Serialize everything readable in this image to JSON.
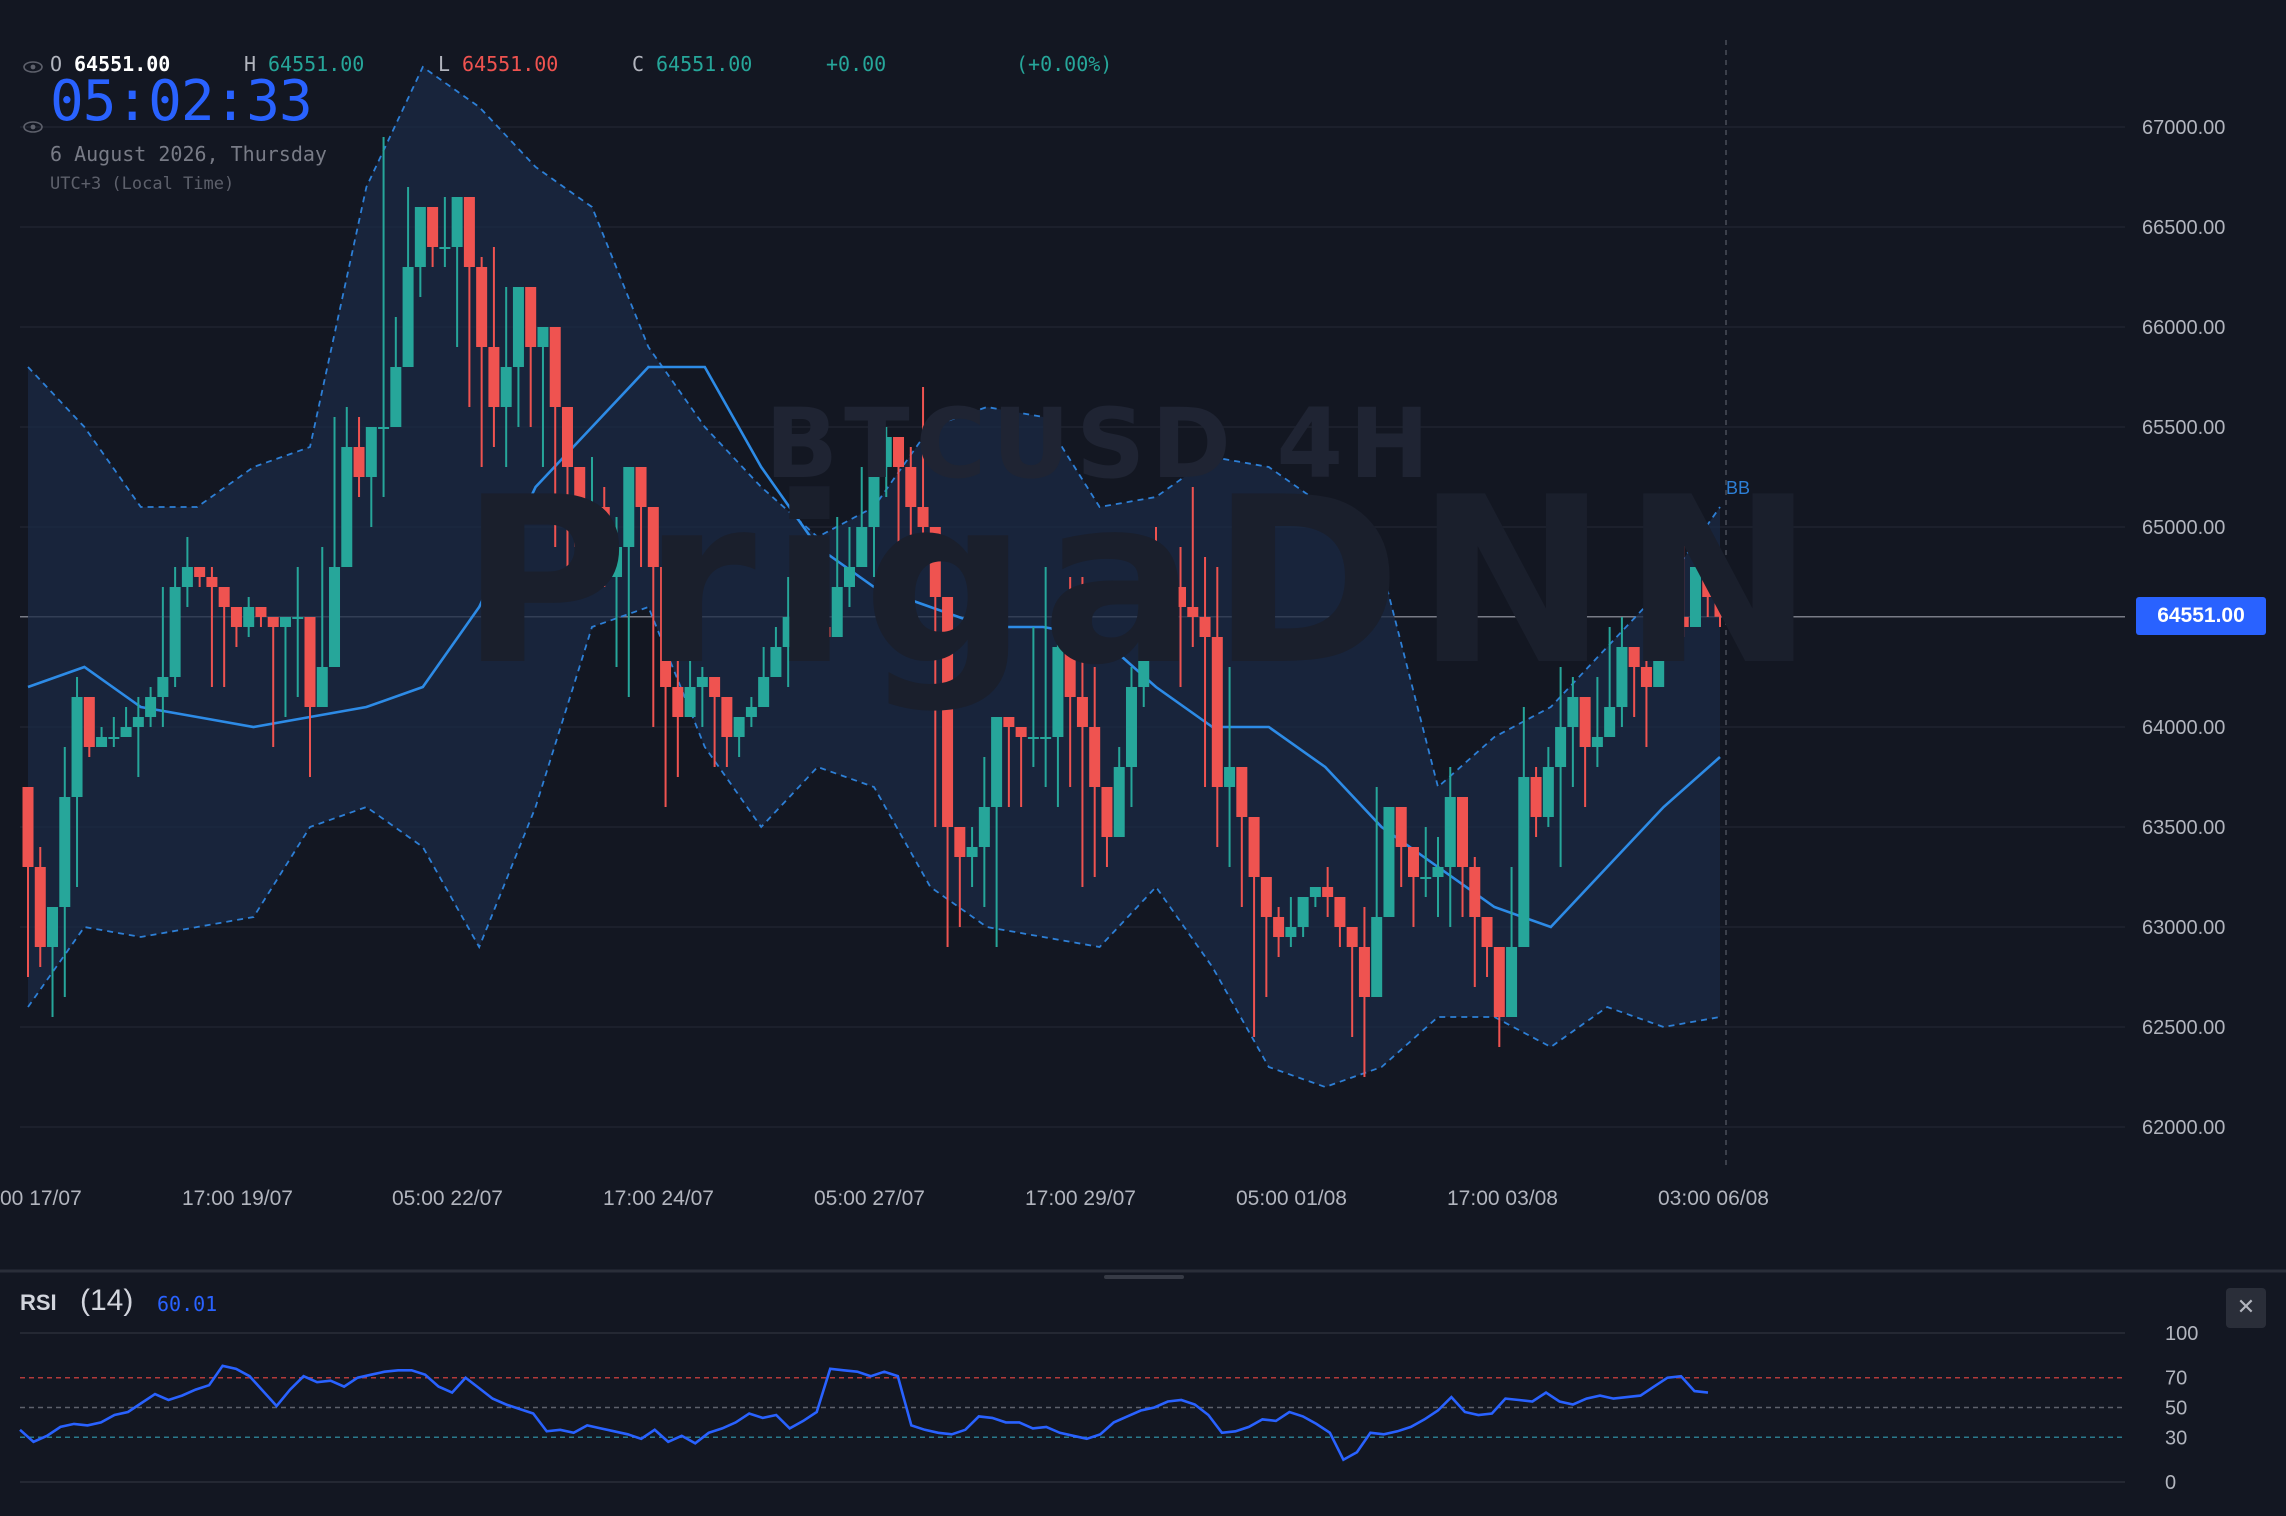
{
  "legend": {
    "o_label": "O",
    "o_value": "64551.00",
    "h_label": "H",
    "h_value": "64551.00",
    "l_label": "L",
    "l_value": "64551.00",
    "c_label": "C",
    "c_value": "64551.00",
    "change": "+0.00",
    "change_pct": "(+0.00%)"
  },
  "clock": {
    "time": "05:02:33",
    "date": "6 August 2026, Thursday",
    "timezone": "UTC+3 (Local Time)"
  },
  "watermark": {
    "symbol": "BTCUSD 4H",
    "brand": "PrigaDNN"
  },
  "price_tag": "64551.00",
  "bb_label": "BB",
  "rsi": {
    "title": "RSI",
    "param": "(14)",
    "value": "60.01",
    "close_icon": "close-icon"
  },
  "colors": {
    "up": "#26a69a",
    "down": "#ef5350",
    "accent": "#2962ff",
    "bb_line": "#2d7fd6",
    "background": "#131722"
  },
  "chart_data": [
    {
      "type": "candlestick",
      "title": "BTCUSD 4H",
      "ylim": [
        61800,
        67500
      ],
      "y_ticks": [
        "67000.00",
        "66500.00",
        "66000.00",
        "65500.00",
        "65000.00",
        "64551.00",
        "64000.00",
        "63500.00",
        "63000.00",
        "62500.00",
        "62000.00"
      ],
      "x_tick_labels": [
        "00 17/07",
        "17:00 19/07",
        "05:00 22/07",
        "17:00 24/07",
        "05:00 27/07",
        "17:00 29/07",
        "05:00 01/08",
        "17:00 03/08",
        "03:00 06/08"
      ],
      "current_price": 64551.0,
      "close": [
        63300,
        62900,
        63100,
        63650,
        64150,
        63900,
        63950,
        63950,
        64000,
        64050,
        64150,
        64250,
        64700,
        64800,
        64750,
        64700,
        64600,
        64500,
        64600,
        64550,
        64500,
        64550,
        64550,
        64100,
        64300,
        64800,
        65400,
        65250,
        65500,
        65500,
        65800,
        66300,
        66600,
        66400,
        66400,
        66650,
        66300,
        65900,
        65600,
        65800,
        66200,
        65900,
        66000,
        65600,
        65300,
        64900,
        65100,
        64750,
        64900,
        65300,
        65100,
        64800,
        64200,
        64050,
        64200,
        64250,
        64150,
        63950,
        64050,
        64100,
        64250,
        64400,
        64550,
        64500,
        64500,
        64450,
        64700,
        64800,
        65000,
        65300,
        65450,
        65300,
        65100,
        65000,
        64650,
        63500,
        63350,
        63400,
        63600,
        64050,
        64000,
        63950,
        63950,
        63950,
        64400,
        64150,
        64000,
        63700,
        63450,
        63800,
        64200,
        64850,
        64800,
        64700,
        64600,
        64550,
        64450,
        63700,
        63800,
        63550,
        63250,
        63050,
        62950,
        63000,
        63150,
        63200,
        63150,
        63000,
        62900,
        62650,
        63050,
        63600,
        63400,
        63250,
        63250,
        63300,
        63650,
        63300,
        63050,
        62900,
        62550,
        62900,
        63750,
        63550,
        63800,
        64000,
        64150,
        63900,
        63950,
        64100,
        64400,
        64300,
        64200,
        64400,
        64550,
        64500,
        64800,
        64650,
        64551
      ],
      "high": [
        63450,
        63400,
        63100,
        63900,
        64250,
        63950,
        64000,
        64050,
        64100,
        64150,
        64200,
        64700,
        64800,
        64950,
        64800,
        64800,
        64650,
        64600,
        64650,
        64550,
        64500,
        64500,
        64800,
        64250,
        64900,
        65550,
        65600,
        65550,
        65500,
        66950,
        66050,
        66700,
        66500,
        66600,
        66650,
        66650,
        66300,
        66350,
        66400,
        66200,
        66050,
        65900,
        65950,
        65300,
        65250,
        65000,
        65350,
        65200,
        65050,
        65300,
        65200,
        64900,
        64300,
        64400,
        64350,
        64300,
        64150,
        64100,
        64050,
        64150,
        64400,
        64500,
        64750,
        64650,
        64650,
        64700,
        65050,
        65000,
        65300,
        65400,
        65500,
        65250,
        65400,
        65700,
        64800,
        63600,
        63400,
        63500,
        63850,
        64050,
        64050,
        64000,
        64500,
        64800,
        64500,
        64750,
        64750,
        64300,
        63650,
        63900,
        64300,
        64500,
        65000,
        64600,
        64900,
        65200,
        64850,
        64800,
        64300,
        63700,
        63150,
        62950,
        63100,
        63150,
        63150,
        63200,
        63300,
        63150,
        62650,
        63100,
        63700,
        63500,
        63400,
        63400,
        63500,
        63450,
        63800,
        63650,
        63350,
        63000,
        62800,
        63300,
        64100,
        63800,
        63900,
        64300,
        64250,
        64000,
        64250,
        64500,
        64550,
        64300,
        64450,
        64800,
        64950,
        65000,
        64800,
        64650,
        64600
      ],
      "low": [
        62750,
        62800,
        62550,
        62650,
        63200,
        63850,
        63900,
        63900,
        63950,
        63750,
        64000,
        64000,
        64200,
        64600,
        64700,
        64200,
        64200,
        64400,
        64450,
        64500,
        63900,
        64050,
        64150,
        63750,
        64100,
        64500,
        65000,
        65150,
        65000,
        65150,
        65600,
        65850,
        66150,
        66300,
        66300,
        65900,
        65600,
        65300,
        65400,
        65300,
        65500,
        65500,
        65300,
        64900,
        64800,
        64750,
        64800,
        64700,
        64300,
        64150,
        64800,
        64000,
        63600,
        63750,
        64100,
        64000,
        63800,
        63800,
        63850,
        64000,
        64150,
        64300,
        64200,
        64400,
        64350,
        64350,
        64450,
        64600,
        64800,
        64750,
        65150,
        64800,
        64900,
        64900,
        63500,
        62900,
        63000,
        63200,
        63100,
        62900,
        63600,
        63600,
        63800,
        63700,
        63600,
        63700,
        63200,
        63250,
        63300,
        63500,
        63600,
        64100,
        64550,
        64500,
        64200,
        64400,
        63700,
        63400,
        63300,
        63100,
        62450,
        62650,
        62850,
        62900,
        62950,
        63100,
        63050,
        62900,
        62450,
        62250,
        62700,
        63150,
        63200,
        63000,
        63150,
        63050,
        63000,
        63050,
        62700,
        62750,
        62400,
        62650,
        63050,
        63450,
        63500,
        63300,
        63700,
        63600,
        63800,
        63950,
        64000,
        64050,
        63900,
        64350,
        64500,
        64450,
        64550,
        64550,
        64500
      ],
      "bb_mid": [
        64200,
        64300,
        64100,
        64050,
        64000,
        64050,
        64100,
        64200,
        64600,
        65200,
        65500,
        65800,
        65800,
        65300,
        64900,
        64700,
        64600,
        64500,
        64500,
        64450,
        64200,
        64000,
        64000,
        63800,
        63500,
        63300,
        63100,
        63000,
        63300,
        63600,
        63850
      ],
      "bb_upper": [
        65800,
        65500,
        65100,
        65100,
        65300,
        65400,
        66700,
        67300,
        67100,
        66800,
        66600,
        65900,
        65500,
        65200,
        64950,
        65100,
        65500,
        65600,
        65550,
        65100,
        65150,
        65350,
        65300,
        65100,
        64800,
        63700,
        63950,
        64100,
        64400,
        64700,
        65100
      ],
      "bb_lower": [
        62600,
        63000,
        62950,
        63000,
        63050,
        63500,
        63600,
        63400,
        62900,
        63600,
        64500,
        64600,
        63900,
        63500,
        63800,
        63700,
        63200,
        63000,
        62950,
        62900,
        63200,
        62800,
        62300,
        62200,
        62300,
        62550,
        62550,
        62400,
        62600,
        62500,
        62550
      ]
    },
    {
      "type": "line",
      "title": "RSI",
      "ylim": [
        0,
        100
      ],
      "y_ticks": [
        100,
        70,
        50,
        30,
        0
      ],
      "values": [
        35,
        27,
        31,
        37,
        39,
        38,
        40,
        45,
        47,
        53,
        59,
        55,
        58,
        62,
        65,
        78,
        76,
        71,
        61,
        51,
        62,
        71,
        67,
        68,
        64,
        70,
        72,
        74,
        75,
        75,
        72,
        64,
        60,
        70,
        63,
        56,
        52,
        49,
        46,
        34,
        35,
        33,
        38,
        36,
        34,
        32,
        29,
        35,
        27,
        31,
        26,
        33,
        36,
        40,
        46,
        43,
        45,
        36,
        41,
        47,
        76,
        75,
        74,
        71,
        74,
        71,
        38,
        35,
        33,
        32,
        35,
        44,
        43,
        40,
        40,
        36,
        37,
        33,
        31,
        29,
        32,
        40,
        44,
        48,
        50,
        54,
        55,
        52,
        45,
        33,
        34,
        37,
        42,
        41,
        47,
        44,
        39,
        33,
        15,
        20,
        33,
        32,
        34,
        37,
        42,
        48,
        57,
        47,
        45,
        46,
        56,
        55,
        54,
        60,
        54,
        52,
        56,
        58,
        56,
        57,
        58,
        64,
        70,
        71,
        61,
        60
      ]
    }
  ]
}
